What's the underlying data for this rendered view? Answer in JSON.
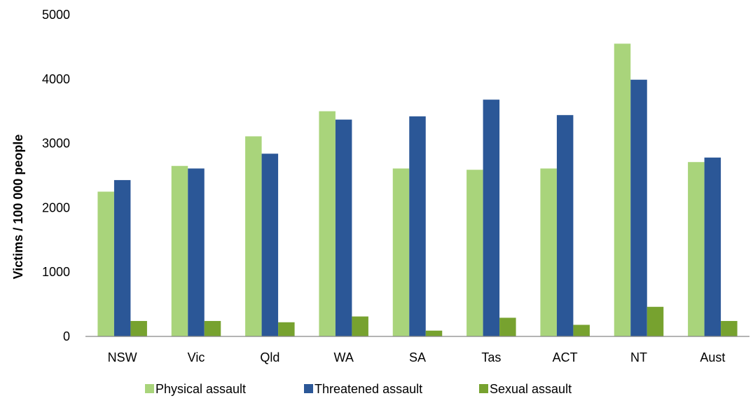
{
  "chart_data": {
    "type": "bar",
    "title": "",
    "xlabel": "",
    "ylabel": "Victims / 100 000 people",
    "ylim": [
      0,
      5000
    ],
    "yticks": [
      0,
      1000,
      2000,
      3000,
      4000,
      5000
    ],
    "grid": false,
    "legend_position": "bottom",
    "categories": [
      "NSW",
      "Vic",
      "Qld",
      "WA",
      "SA",
      "Tas",
      "ACT",
      "NT",
      "Aust"
    ],
    "series": [
      {
        "name": "Physical assault",
        "color": "#A9D47B",
        "values": [
          2250,
          2650,
          3110,
          3500,
          2610,
          2590,
          2610,
          4550,
          2710
        ]
      },
      {
        "name": "Threatened assault",
        "color": "#2B5797",
        "values": [
          2430,
          2610,
          2840,
          3370,
          3420,
          3680,
          3440,
          3990,
          2780
        ]
      },
      {
        "name": "Sexual assault",
        "color": "#77A22F",
        "values": [
          240,
          240,
          220,
          310,
          90,
          290,
          180,
          460,
          240
        ]
      }
    ]
  }
}
